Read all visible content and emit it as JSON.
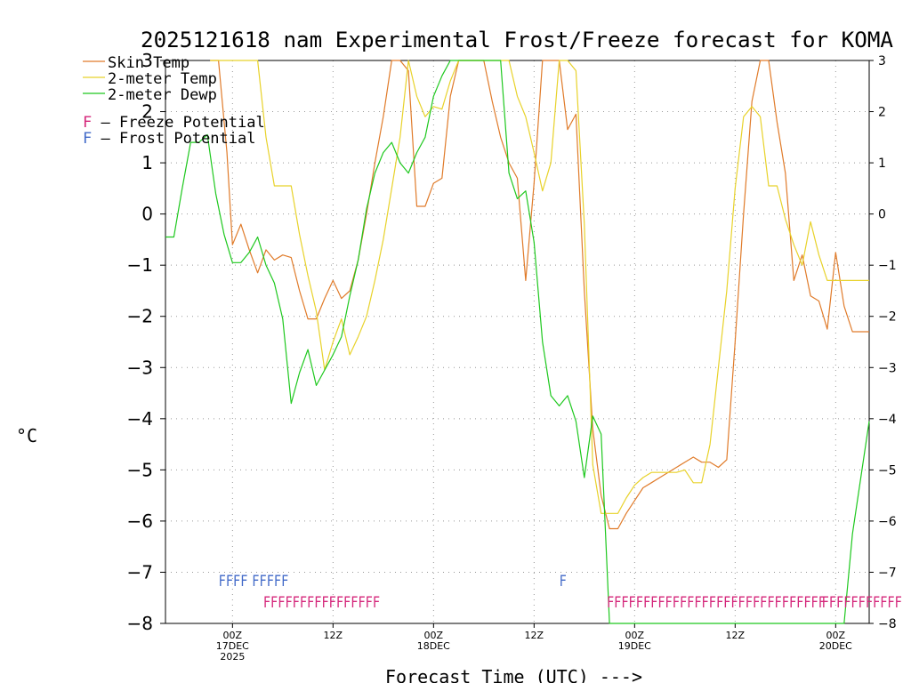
{
  "chart_data": {
    "type": "line",
    "title": "2025121618 nam Experimental Frost/Freeze forecast for KOMA",
    "xlabel": "Forecast Time (UTC) --->",
    "ylabel": "°C",
    "ylim": [
      -8,
      3
    ],
    "xlim": [
      18,
      81
    ],
    "y_ticks": [
      3,
      2,
      1,
      0,
      -1,
      -2,
      -3,
      -4,
      -5,
      -6,
      -7,
      -8
    ],
    "y_tick_labels": [
      "3",
      "2",
      "1",
      "0",
      "−1",
      "−2",
      "−3",
      "−4",
      "−5",
      "−6",
      "−7",
      "−8"
    ],
    "x_ticks": [
      {
        "hour": 24,
        "lines": [
          "00Z",
          "17DEC",
          "2025"
        ]
      },
      {
        "hour": 33,
        "lines": [
          "12Z"
        ]
      },
      {
        "hour": 42,
        "lines": [
          "00Z",
          "18DEC"
        ]
      },
      {
        "hour": 51,
        "lines": [
          "12Z"
        ]
      },
      {
        "hour": 60,
        "lines": [
          "00Z",
          "19DEC"
        ]
      },
      {
        "hour": 69,
        "lines": [
          "12Z"
        ]
      },
      {
        "hour": 78,
        "lines": [
          "00Z",
          "20DEC"
        ]
      }
    ],
    "grid": true,
    "legend": [
      {
        "name": "Skin Temp",
        "color": "#e07b2a"
      },
      {
        "name": "2-meter Temp",
        "color": "#e8d22a"
      },
      {
        "name": "2-meter Dewp",
        "color": "#1ec81e"
      }
    ],
    "legend2": [
      {
        "letter": "F",
        "text": " – Freeze Potential",
        "color": "#d4267a"
      },
      {
        "letter": "F",
        "text": " – Frost Potential",
        "color": "#4169c8"
      }
    ],
    "series": [
      {
        "name": "Skin Temp",
        "color": "#e07b2a",
        "x": [
          22,
          22.75,
          23.5,
          24,
          24.75,
          25.5,
          26.25,
          27,
          27.75,
          28.5,
          29.25,
          30,
          30.75,
          31.5,
          32.25,
          33,
          33.75,
          34.5,
          35.25,
          36,
          36.75,
          37.5,
          38.25,
          39,
          39.75,
          40.5,
          41.25,
          42,
          42.75,
          43.5,
          44.25,
          45,
          45.75,
          46.5,
          47.25,
          48,
          48.75,
          49.5,
          50.25,
          51,
          51.75,
          52.5,
          53.25,
          54,
          54.75,
          55.5,
          56.25,
          57,
          57.75,
          58.5,
          59.25,
          60,
          60.75,
          61.5,
          62.25,
          63,
          63.75,
          64.5,
          65.25,
          66,
          66.75,
          67.5,
          68.25,
          69,
          69.75,
          70.5,
          71.25,
          72,
          72.75,
          73.5,
          74.25,
          75,
          75.75,
          76.5,
          77.25,
          78,
          78.75,
          79.5,
          80.25,
          81
        ],
        "y": [
          3,
          3,
          1.2,
          -0.6,
          -0.2,
          -0.7,
          -1.15,
          -0.7,
          -0.9,
          -0.8,
          -0.85,
          -1.5,
          -2.05,
          -2.05,
          -1.65,
          -1.3,
          -1.65,
          -1.5,
          -0.9,
          0,
          1,
          1.9,
          3,
          3,
          2.8,
          0.15,
          0.15,
          0.6,
          0.7,
          2.3,
          3,
          3,
          3,
          3,
          2.2,
          1.5,
          1,
          0.7,
          -1.3,
          0.6,
          3,
          3,
          3,
          1.65,
          1.95,
          -1.5,
          -4.2,
          -5.5,
          -6.15,
          -6.15,
          -5.85,
          -5.6,
          -5.35,
          -5.25,
          -5.15,
          -5.05,
          -4.95,
          -4.85,
          -4.75,
          -4.85,
          -4.85,
          -4.95,
          -4.8,
          -2.5,
          0,
          2.2,
          3,
          3,
          1.8,
          0.8,
          -1.3,
          -0.8,
          -1.6,
          -1.7,
          -2.25,
          -0.75,
          -1.8,
          -2.3,
          -2.3,
          -2.3
        ]
      },
      {
        "name": "2-meter Temp",
        "color": "#e8d22a",
        "x": [
          22,
          22.75,
          23.5,
          24,
          24.75,
          25.5,
          26.25,
          27,
          27.75,
          28.5,
          29.25,
          30,
          30.75,
          31.5,
          32.25,
          33,
          33.75,
          34.5,
          35.25,
          36,
          36.75,
          37.5,
          38.25,
          39,
          39.75,
          40.5,
          41.25,
          42,
          42.75,
          43.5,
          44.25,
          45,
          45.75,
          46.5,
          47.25,
          48,
          48.75,
          49.5,
          50.25,
          51,
          51.75,
          52.5,
          53.25,
          54,
          54.75,
          55.5,
          56.25,
          57,
          57.75,
          58.5,
          59.25,
          60,
          60.75,
          61.5,
          62.25,
          63,
          63.75,
          64.5,
          65.25,
          66,
          66.75,
          67.5,
          68.25,
          69,
          69.75,
          70.5,
          71.25,
          72,
          72.75,
          73.5,
          74.25,
          75,
          75.75,
          76.5,
          77.25,
          78,
          78.75,
          79.5,
          80.25,
          81
        ],
        "y": [
          3,
          3,
          3,
          3,
          3,
          3,
          3,
          1.5,
          0.55,
          0.55,
          0.55,
          -0.4,
          -1.2,
          -1.9,
          -3.05,
          -2.5,
          -2.05,
          -2.75,
          -2.4,
          -2,
          -1.3,
          -0.5,
          0.5,
          1.5,
          3,
          2.3,
          1.9,
          2.1,
          2.05,
          2.6,
          3,
          3,
          3,
          3,
          3,
          3,
          3,
          2.3,
          1.9,
          1.2,
          0.45,
          1,
          3,
          3,
          2.8,
          -0.2,
          -4.9,
          -5.85,
          -5.85,
          -5.85,
          -5.55,
          -5.3,
          -5.15,
          -5.05,
          -5.05,
          -5.05,
          -5.05,
          -5,
          -5.25,
          -5.25,
          -4.5,
          -3,
          -1.5,
          0.5,
          1.9,
          2.1,
          1.9,
          0.55,
          0.55,
          -0.1,
          -0.6,
          -1,
          -0.15,
          -0.8,
          -1.3,
          -1.3,
          -1.3,
          -1.3,
          -1.3,
          -1.3
        ]
      },
      {
        "name": "2-meter Dewp",
        "color": "#1ec81e",
        "x": [
          18,
          18.75,
          19.5,
          20.25,
          21,
          21.75,
          22.5,
          23.25,
          24,
          24.75,
          25.5,
          26.25,
          27,
          27.75,
          28.5,
          29.25,
          30,
          30.75,
          31.5,
          32.25,
          33,
          33.75,
          34.5,
          35.25,
          36,
          36.75,
          37.5,
          38.25,
          39,
          39.75,
          40.5,
          41.25,
          42,
          42.75,
          43.5,
          44.25,
          45,
          45.75,
          46.5,
          47.25,
          48,
          48.75,
          49.5,
          50.25,
          51,
          51.75,
          52.5,
          53.25,
          54,
          54.75,
          55.5,
          56.25,
          57,
          57.75,
          58.5,
          59.25,
          60,
          60.75,
          61.5,
          62.25,
          63,
          63.75,
          64.5,
          65.25,
          66,
          66.75,
          67.5,
          68.25,
          69,
          69.75,
          70.5,
          71.25,
          72,
          72.75,
          73.5,
          74.25,
          75,
          75.75,
          76.5,
          77.25,
          78,
          78.75,
          79.5,
          80.25,
          81
        ],
        "y": [
          -0.45,
          -0.45,
          0.5,
          1.4,
          1.4,
          1.55,
          0.4,
          -0.4,
          -0.95,
          -0.95,
          -0.75,
          -0.45,
          -1,
          -1.35,
          -2.05,
          -3.7,
          -3.1,
          -2.65,
          -3.35,
          -3.05,
          -2.75,
          -2.4,
          -1.6,
          -0.9,
          0.1,
          0.8,
          1.2,
          1.4,
          1,
          0.8,
          1.2,
          1.5,
          2.3,
          2.7,
          3,
          3,
          3,
          3,
          3,
          3,
          3,
          0.8,
          0.3,
          0.45,
          -0.55,
          -2.5,
          -3.55,
          -3.75,
          -3.55,
          -4.05,
          -5.15,
          -3.95,
          -4.3,
          -8,
          -8,
          -8,
          -8,
          -8,
          -8,
          -8,
          -8,
          -8,
          -8,
          -8,
          -8,
          -8,
          -8,
          -8,
          -8,
          -8,
          -8,
          -8,
          -8,
          -8,
          -8,
          -8,
          -8,
          -8,
          -8,
          -8,
          -8,
          -8,
          -6.25,
          -5.15,
          -4.05
        ]
      }
    ],
    "frost_markers": [
      {
        "x": 22.75,
        "text": "FFFF"
      },
      {
        "x": 25.75,
        "text": "FFFFF"
      },
      {
        "x": 53.25,
        "text": "F"
      }
    ],
    "freeze_markers": [
      {
        "x": 26.75,
        "text": "FFFFFFFFFFFFFFFF"
      },
      {
        "x": 57.5,
        "text": "FFFFFFFFFFFFFFFFFFFFFFFFFFFFFF"
      },
      {
        "x": 76.75,
        "text": "FFFFFFFFFFF"
      }
    ]
  }
}
